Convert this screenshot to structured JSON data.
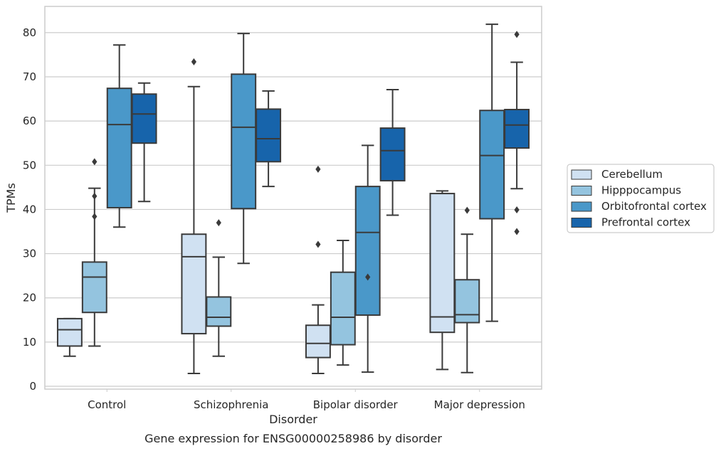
{
  "chart_data": {
    "type": "box",
    "xlabel": "Disorder",
    "ylabel": "TPMs",
    "caption": "Gene expression for ENSG00000258986 by disorder",
    "ylim": [
      -1,
      86
    ],
    "yticks": [
      0,
      10,
      20,
      30,
      40,
      50,
      60,
      70,
      80
    ],
    "grid": "horizontal",
    "legend_position": "right",
    "categories": [
      "Control",
      "Schizophrenia",
      "Bipolar disorder",
      "Major depression"
    ],
    "series": [
      {
        "name": "Cerebellum",
        "color": "#d0e1f2",
        "boxes": [
          {
            "whisker_low": 6.8,
            "q1": 9.1,
            "median": 12.8,
            "q3": 15.3,
            "whisker_high": 15.3,
            "outliers": []
          },
          {
            "whisker_low": 2.9,
            "q1": 11.9,
            "median": 29.3,
            "q3": 34.4,
            "whisker_high": 67.8,
            "outliers": [
              73.4
            ]
          },
          {
            "whisker_low": 2.9,
            "q1": 6.5,
            "median": 9.7,
            "q3": 13.8,
            "whisker_high": 18.4,
            "outliers": [
              32.1,
              49.1
            ]
          },
          {
            "whisker_low": 3.8,
            "q1": 12.2,
            "median": 15.7,
            "q3": 43.6,
            "whisker_high": 44.2,
            "outliers": []
          }
        ]
      },
      {
        "name": "Hipppocampus",
        "color": "#94c4df",
        "boxes": [
          {
            "whisker_low": 9.1,
            "q1": 16.7,
            "median": 24.7,
            "q3": 28.1,
            "whisker_high": 44.8,
            "outliers": [
              38.4,
              43.0,
              50.8
            ]
          },
          {
            "whisker_low": 6.8,
            "q1": 13.6,
            "median": 15.6,
            "q3": 20.2,
            "whisker_high": 29.2,
            "outliers": [
              37.0
            ]
          },
          {
            "whisker_low": 4.8,
            "q1": 9.4,
            "median": 15.6,
            "q3": 25.8,
            "whisker_high": 33.0,
            "outliers": []
          },
          {
            "whisker_low": 3.1,
            "q1": 14.4,
            "median": 16.2,
            "q3": 24.1,
            "whisker_high": 34.4,
            "outliers": [
              39.8
            ]
          }
        ]
      },
      {
        "name": "Orbitofrontal cortex",
        "color": "#4a98c9",
        "boxes": [
          {
            "whisker_low": 36.0,
            "q1": 40.4,
            "median": 59.2,
            "q3": 67.4,
            "whisker_high": 77.2,
            "outliers": []
          },
          {
            "whisker_low": 27.8,
            "q1": 40.2,
            "median": 58.6,
            "q3": 70.6,
            "whisker_high": 79.8,
            "outliers": []
          },
          {
            "whisker_low": 3.2,
            "q1": 16.1,
            "median": 34.8,
            "q3": 45.2,
            "whisker_high": 54.5,
            "outliers": [
              24.7
            ]
          },
          {
            "whisker_low": 14.7,
            "q1": 37.9,
            "median": 52.2,
            "q3": 62.4,
            "whisker_high": 81.9,
            "outliers": []
          }
        ]
      },
      {
        "name": "Prefrontal cortex",
        "color": "#1764ab",
        "boxes": [
          {
            "whisker_low": 41.8,
            "q1": 55.0,
            "median": 61.6,
            "q3": 66.1,
            "whisker_high": 68.6,
            "outliers": []
          },
          {
            "whisker_low": 45.2,
            "q1": 50.8,
            "median": 56.0,
            "q3": 62.7,
            "whisker_high": 66.8,
            "outliers": []
          },
          {
            "whisker_low": 38.7,
            "q1": 46.5,
            "median": 53.3,
            "q3": 58.4,
            "whisker_high": 67.1,
            "outliers": []
          },
          {
            "whisker_low": 44.7,
            "q1": 53.9,
            "median": 59.1,
            "q3": 62.6,
            "whisker_high": 73.3,
            "outliers": [
              35.0,
              39.9,
              79.6
            ]
          }
        ]
      }
    ]
  }
}
